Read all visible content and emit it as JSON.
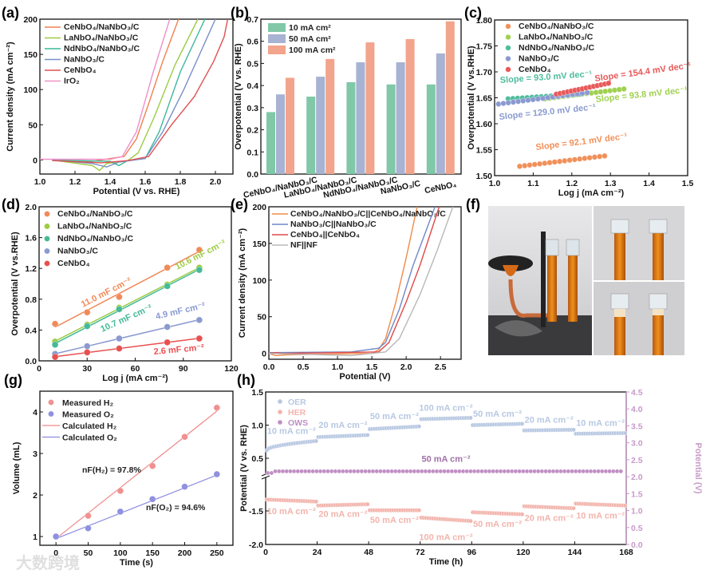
{
  "figure": {
    "panel_labels": [
      "(a)",
      "(b)",
      "(c)",
      "(d)",
      "(e)",
      "(f)",
      "(g)",
      "(h)"
    ],
    "watermark": "大数跨境"
  },
  "photo_f": {
    "description_icon": "electrolyzer-photo-icon"
  },
  "chart_data": [
    {
      "id": "a",
      "type": "line",
      "xlabel": "Potential (V vs. RHE)",
      "ylabel": "Current density (mA cm⁻²)",
      "xlim": [
        1.0,
        2.1
      ],
      "ylim": [
        -20,
        200
      ],
      "xticks": [
        1.0,
        1.2,
        1.4,
        1.6,
        1.8,
        2.0
      ],
      "xtick_labels": [
        "1.0",
        "1.2",
        "1.4",
        "1.6",
        "1.8",
        "2.0"
      ],
      "yticks": [
        0,
        50,
        100,
        150,
        200
      ],
      "ytick_labels": [
        "0",
        "50",
        "100",
        "150",
        "200"
      ],
      "legend": "top-left",
      "series": [
        {
          "name": "CeNbO₄/NaNbO₃/C",
          "color": "#f08050",
          "points": [
            [
              1.07,
              0
            ],
            [
              1.3,
              -2
            ],
            [
              1.4,
              2
            ],
            [
              1.48,
              5
            ],
            [
              1.55,
              30
            ],
            [
              1.62,
              80
            ],
            [
              1.7,
              140
            ],
            [
              1.79,
              200
            ]
          ]
        },
        {
          "name": "LaNbO₄/NaNbO₃/C",
          "color": "#9ccc44",
          "points": [
            [
              1.07,
              0
            ],
            [
              1.3,
              -8
            ],
            [
              1.34,
              -15
            ],
            [
              1.38,
              -5
            ],
            [
              1.5,
              -1
            ],
            [
              1.56,
              10
            ],
            [
              1.65,
              60
            ],
            [
              1.77,
              135
            ],
            [
              1.9,
              200
            ]
          ]
        },
        {
          "name": "NdNbO₄/NaNbO₃/C",
          "color": "#3cb89a",
          "points": [
            [
              1.07,
              0
            ],
            [
              1.4,
              -2
            ],
            [
              1.45,
              -8
            ],
            [
              1.5,
              -1
            ],
            [
              1.6,
              2
            ],
            [
              1.68,
              40
            ],
            [
              1.8,
              125
            ],
            [
              1.94,
              200
            ]
          ]
        },
        {
          "name": "NaNbO₃/C",
          "color": "#7890c8",
          "points": [
            [
              1.07,
              0
            ],
            [
              1.3,
              -5
            ],
            [
              1.38,
              -10
            ],
            [
              1.45,
              -3
            ],
            [
              1.6,
              2
            ],
            [
              1.7,
              40
            ],
            [
              1.82,
              100
            ],
            [
              2.0,
              200
            ]
          ]
        },
        {
          "name": "CeNbO₄",
          "color": "#e05050",
          "points": [
            [
              1.07,
              -1
            ],
            [
              1.35,
              -4
            ],
            [
              1.5,
              -1
            ],
            [
              1.62,
              5
            ],
            [
              1.75,
              50
            ],
            [
              1.88,
              90
            ],
            [
              1.99,
              140
            ],
            [
              2.05,
              175
            ],
            [
              2.07,
              200
            ]
          ]
        },
        {
          "name": "IrO₂",
          "color": "#f090c8",
          "points": [
            [
              1.0,
              1
            ],
            [
              1.4,
              1
            ],
            [
              1.47,
              5
            ],
            [
              1.55,
              40
            ],
            [
              1.64,
              120
            ],
            [
              1.74,
              200
            ]
          ]
        }
      ]
    },
    {
      "id": "b",
      "type": "bar",
      "xlabel": "",
      "ylabel": "Overpotential (V vs. RHE)",
      "ylim": [
        0,
        0.7
      ],
      "yticks": [
        0,
        0.1,
        0.2,
        0.3,
        0.4,
        0.5,
        0.6,
        0.7
      ],
      "ytick_labels": [
        "0.0",
        "0.1",
        "0.2",
        "0.3",
        "0.4",
        "0.5",
        "0.6",
        "0.7"
      ],
      "categories": [
        "CeNbO₄/NaNbO₃/C",
        "LaNbO₄/NaNbO₃/C",
        "NdNbO₄/NaNbO₃/C",
        "NaNbO₃/C",
        "CeNbO₄"
      ],
      "legend": "top-left",
      "series": [
        {
          "name": "10 mA cm²",
          "color": "#80c8a8",
          "values": [
            0.28,
            0.35,
            0.415,
            0.405,
            0.405
          ]
        },
        {
          "name": "50 mA cm²",
          "color": "#a8b2d2",
          "values": [
            0.36,
            0.44,
            0.505,
            0.505,
            0.545
          ]
        },
        {
          "name": "100 mA cm²",
          "color": "#f2a48c",
          "values": [
            0.435,
            0.52,
            0.595,
            0.61,
            0.69
          ]
        }
      ]
    },
    {
      "id": "c",
      "type": "scatter",
      "xlabel": "Log j (mA cm⁻²)",
      "ylabel": "Overpotential (V vs.RHE)",
      "xlim": [
        1.0,
        1.5
      ],
      "ylim": [
        1.5,
        1.8
      ],
      "xticks": [
        1.0,
        1.1,
        1.2,
        1.3,
        1.4,
        1.5
      ],
      "xtick_labels": [
        "1.0",
        "1.1",
        "1.2",
        "1.3",
        "1.4",
        "1.5"
      ],
      "yticks": [
        1.5,
        1.55,
        1.6,
        1.65,
        1.7,
        1.75,
        1.8
      ],
      "ytick_labels": [
        "1.50",
        "1.55",
        "1.60",
        "1.65",
        "1.70",
        "1.75",
        "1.80"
      ],
      "legend": "top-left",
      "series": [
        {
          "name": "CeNbO₄/NaNbO₃/C",
          "color": "#f0905a",
          "x_range": [
            1.065,
            1.285
          ],
          "y_range": [
            1.518,
            1.538
          ],
          "n": 18,
          "slope_label": "Slope = 92.1 mV dec⁻¹"
        },
        {
          "name": "LaNbO₄/NaNbO₃/C",
          "color": "#a0d050",
          "x_range": [
            1.13,
            1.335
          ],
          "y_range": [
            1.648,
            1.667
          ],
          "n": 18,
          "slope_label": "Slope = 93.8 mV dec⁻¹"
        },
        {
          "name": "NdNbO₄/NaNbO₃/C",
          "color": "#4cbc9c",
          "x_range": [
            1.035,
            1.22
          ],
          "y_range": [
            1.648,
            1.657
          ],
          "n": 16,
          "slope_label": "Slope = 93.0 mV dec⁻¹"
        },
        {
          "name": "NaNbO₃/C",
          "color": "#8a9ad0",
          "x_range": [
            1.01,
            1.24
          ],
          "y_range": [
            1.638,
            1.66
          ],
          "n": 19,
          "slope_label": "Slope = 129.0 mV dec⁻¹"
        },
        {
          "name": "CeNbO₄",
          "color": "#e85858",
          "x_range": [
            1.16,
            1.295
          ],
          "y_range": [
            1.657,
            1.678
          ],
          "n": 15,
          "slope_label": "Slope = 154.4 mV dec⁻¹"
        }
      ]
    },
    {
      "id": "d",
      "type": "scatter",
      "xlabel": "Log j (mA cm⁻²)",
      "ylabel": "Overpotential (V vs.RHE)",
      "xlim": [
        0,
        120
      ],
      "ylim": [
        0,
        2.0
      ],
      "xticks": [
        0,
        30,
        60,
        90,
        120
      ],
      "xtick_labels": [
        "0",
        "30",
        "60",
        "90",
        "120"
      ],
      "yticks": [
        0,
        0.4,
        0.8,
        1.2,
        1.6,
        2.0
      ],
      "ytick_labels": [
        "0.0",
        "0.4",
        "0.8",
        "1.2",
        "1.6",
        "2.0"
      ],
      "legend": "top-left",
      "x": [
        10,
        30,
        50,
        80,
        100
      ],
      "series": [
        {
          "name": "CeNbO₄/NaNbO₃/C",
          "color": "#f08a5a",
          "values": [
            0.48,
            0.63,
            0.83,
            1.21,
            1.44
          ],
          "label": "11.0 mF cm⁻²"
        },
        {
          "name": "LaNbO₄/NaNbO₃/C",
          "color": "#9ccc44",
          "values": [
            0.25,
            0.47,
            0.69,
            0.99,
            1.21
          ],
          "label": "10.6 mF cm⁻²"
        },
        {
          "name": "NdNbO₄/NaNbO₃/C",
          "color": "#44ba98",
          "values": [
            0.21,
            0.45,
            0.67,
            0.97,
            1.18
          ],
          "label": "10.7 mF cm⁻²"
        },
        {
          "name": "NaNbO₃/C",
          "color": "#8a9ad0",
          "values": [
            0.09,
            0.19,
            0.29,
            0.44,
            0.53
          ],
          "label": "4.9 mF cm⁻²"
        },
        {
          "name": "CeNbO₄",
          "color": "#e85050",
          "values": [
            0.05,
            0.11,
            0.16,
            0.24,
            0.29
          ],
          "label": "2.6 mF cm⁻²"
        }
      ]
    },
    {
      "id": "e",
      "type": "line",
      "xlabel": "Potential (V)",
      "ylabel": "Current density (mA cm⁻²)",
      "xlim": [
        0,
        2.8
      ],
      "ylim": [
        -8,
        200
      ],
      "xticks": [
        0,
        0.5,
        1.0,
        1.5,
        2.0,
        2.5
      ],
      "xtick_labels": [
        "0.0",
        "0.5",
        "1.0",
        "1.5",
        "2.0",
        "2.5"
      ],
      "yticks": [
        0,
        50,
        100,
        150,
        200
      ],
      "ytick_labels": [
        "0",
        "50",
        "100",
        "150",
        "200"
      ],
      "legend": "top-left",
      "series": [
        {
          "name": "CeNbO₄/NaNbO₃/C||CeNbO₄/NaNbO₃/C",
          "color": "#f08a4a",
          "points": [
            [
              0,
              0
            ],
            [
              0.1,
              -3
            ],
            [
              0.25,
              -2
            ],
            [
              1.5,
              0
            ],
            [
              1.6,
              5
            ],
            [
              1.7,
              20
            ],
            [
              1.85,
              70
            ],
            [
              2.0,
              130
            ],
            [
              2.16,
              200
            ]
          ]
        },
        {
          "name": "NaNbO₃/C||NaNbO₃/C",
          "color": "#6f88c8",
          "points": [
            [
              0,
              1
            ],
            [
              1.2,
              2
            ],
            [
              1.6,
              7
            ],
            [
              1.7,
              15
            ],
            [
              1.9,
              60
            ],
            [
              2.1,
              120
            ],
            [
              2.42,
              200
            ]
          ]
        },
        {
          "name": "CeNbO₄||CeNbO₄",
          "color": "#e04848",
          "points": [
            [
              0,
              0
            ],
            [
              0.1,
              1
            ],
            [
              0.2,
              0
            ],
            [
              1.6,
              2
            ],
            [
              1.75,
              15
            ],
            [
              2.0,
              70
            ],
            [
              2.2,
              120
            ],
            [
              2.48,
              200
            ]
          ]
        },
        {
          "name": "NF||NF",
          "color": "#b8b8b8",
          "points": [
            [
              0,
              0
            ],
            [
              1.2,
              -3
            ],
            [
              1.7,
              2
            ],
            [
              1.9,
              20
            ],
            [
              2.2,
              80
            ],
            [
              2.45,
              140
            ],
            [
              2.68,
              200
            ]
          ]
        }
      ]
    },
    {
      "id": "g",
      "type": "scatter",
      "xlabel": "Time (s)",
      "ylabel": "Volume (mL)",
      "xlim": [
        -25,
        275
      ],
      "ylim": [
        0.79,
        4.5
      ],
      "xticks": [
        0,
        50,
        100,
        150,
        200,
        250
      ],
      "xtick_labels": [
        "0",
        "50",
        "100",
        "150",
        "200",
        "250"
      ],
      "yticks": [
        1,
        2,
        3,
        4
      ],
      "ytick_labels": [
        "1",
        "2",
        "3",
        "4"
      ],
      "legend": "top-left",
      "x": [
        0,
        50,
        100,
        150,
        200,
        250
      ],
      "series": [
        {
          "name": "Measured  H₂",
          "color": "#f09090",
          "values": [
            1.0,
            1.5,
            2.1,
            2.7,
            3.4,
            4.1
          ]
        },
        {
          "name": "Measured  O₂",
          "color": "#9090e0",
          "values": [
            1.0,
            1.2,
            1.6,
            1.9,
            2.2,
            2.5
          ]
        },
        {
          "name": "Calculated H₂",
          "color": "#f08888",
          "line": [
            [
              0,
              0.95
            ],
            [
              250,
              4.02
            ]
          ]
        },
        {
          "name": "Calculated O₂",
          "color": "#8a8ae0",
          "line": [
            [
              0,
              0.95
            ],
            [
              250,
              2.48
            ]
          ]
        }
      ],
      "annotations": [
        "nF(H₂) = 97.8%",
        "nF(O₂) = 94.6%"
      ]
    },
    {
      "id": "h",
      "type": "scatter",
      "xlabel": "Time (h)",
      "ylabel": "Potential (V vs. RHE)",
      "ylabel_right": "Potential (V)",
      "xlim": [
        0,
        168
      ],
      "ylim": [
        -2.0,
        1.5
      ],
      "ylim_right": [
        0,
        4.5
      ],
      "y_break": [
        -1.25,
        0.25
      ],
      "xticks": [
        0,
        24,
        48,
        72,
        96,
        120,
        144,
        168
      ],
      "xtick_labels": [
        "0",
        "24",
        "48",
        "72",
        "96",
        "120",
        "144",
        "168"
      ],
      "yticks": [
        1.5,
        1.0,
        0.5,
        -1.5,
        -2.0
      ],
      "ytick_labels": [
        "1.5",
        "1.0",
        "0.5",
        "-1.5",
        "-2.0"
      ],
      "yticks_right": [
        0,
        0.5,
        1.0,
        1.5,
        2.0,
        2.5,
        3.0,
        3.5,
        4.0,
        4.5
      ],
      "ytick_labels_right": [
        "0.0",
        "0.5",
        "1.0",
        "1.5",
        "2.0",
        "2.5",
        "3.0",
        "3.5",
        "4.0",
        "4.5"
      ],
      "legend": "top-left",
      "series": [
        {
          "name": "OER",
          "color": "#b8c8e2",
          "segments": [
            [
              0.62,
              0.76
            ],
            [
              0.82,
              0.85
            ],
            [
              0.94,
              0.98
            ],
            [
              1.09,
              1.11
            ],
            [
              1.0,
              1.02
            ],
            [
              0.92,
              0.93
            ],
            [
              0.87,
              0.88
            ]
          ],
          "segment_labels": [
            "10 mA cm⁻²",
            "20 mA cm⁻²",
            "50 mA cm⁻²",
            "100 mA cm⁻²",
            "50 mA cm⁻²",
            "20 mA cm⁻²",
            "10 mA cm⁻²"
          ]
        },
        {
          "name": "HER",
          "color": "#f2b4ac",
          "segments": [
            [
              -1.33,
              -1.36
            ],
            [
              -1.42,
              -1.4
            ],
            [
              -1.49,
              -1.49
            ],
            [
              -1.6,
              -1.65
            ],
            [
              -1.52,
              -1.55
            ],
            [
              -1.43,
              -1.46
            ],
            [
              -1.39,
              -1.42
            ]
          ],
          "segment_labels": [
            "10 mA cm⁻²",
            "20 mA cm⁻²",
            "50 mA cm⁻²",
            "100 mA cm⁻²",
            "50 mA cm⁻²",
            "20 mA cm⁻²",
            "10 mA cm⁻²"
          ]
        },
        {
          "name": "OWS",
          "color": "#c08ec4",
          "axis": "right",
          "value": 2.16,
          "label": "50 mA cm⁻²"
        }
      ]
    }
  ]
}
